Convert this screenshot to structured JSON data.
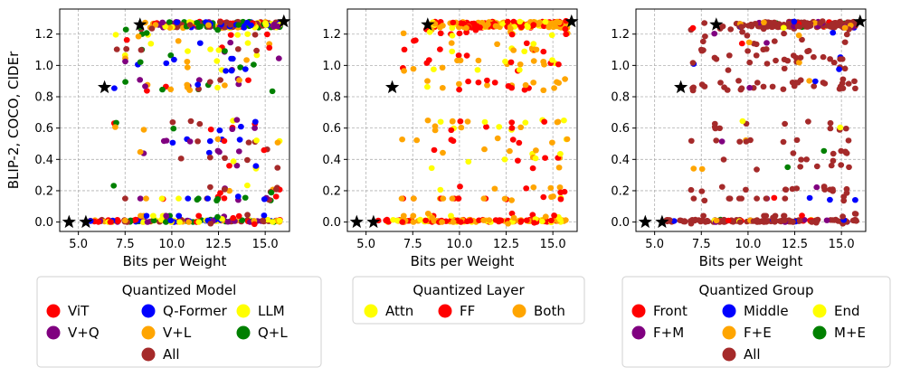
{
  "chart_data": [
    {
      "type": "scatter",
      "xlabel": "Bits per Weight",
      "ylabel": "BLIP-2, COCO, CIDEr",
      "xlim": [
        4.0,
        16.3
      ],
      "ylim": [
        -0.06,
        1.36
      ],
      "xticks": [
        "5.0",
        "7.5",
        "10.0",
        "12.5",
        "15.0"
      ],
      "yticks": [
        "0.0",
        "0.2",
        "0.4",
        "0.6",
        "0.8",
        "1.0",
        "1.2"
      ],
      "grid": true,
      "pareto_points": [
        [
          4.5,
          0.0
        ],
        [
          5.4,
          0.0
        ],
        [
          6.4,
          0.86
        ],
        [
          8.3,
          1.26
        ],
        [
          16.0,
          1.28
        ]
      ],
      "legend": {
        "title": "Quantized Model",
        "entries": [
          {
            "label": "ViT",
            "color": "#ff0000"
          },
          {
            "label": "Q-Former",
            "color": "#0000ff"
          },
          {
            "label": "LLM",
            "color": "#ffff00"
          },
          {
            "label": "V+Q",
            "color": "#800080"
          },
          {
            "label": "V+L",
            "color": "#ffa500"
          },
          {
            "label": "Q+L",
            "color": "#008000"
          },
          {
            "label": "All",
            "color": "#a52a2a"
          }
        ]
      }
    },
    {
      "type": "scatter",
      "xlabel": "Bits per Weight",
      "ylabel": "",
      "xlim": [
        4.0,
        16.3
      ],
      "ylim": [
        -0.06,
        1.36
      ],
      "xticks": [
        "5.0",
        "7.5",
        "10.0",
        "12.5",
        "15.0"
      ],
      "yticks": [
        "0.0",
        "0.2",
        "0.4",
        "0.6",
        "0.8",
        "1.0",
        "1.2"
      ],
      "grid": true,
      "pareto_points": [
        [
          4.5,
          0.0
        ],
        [
          5.4,
          0.0
        ],
        [
          6.4,
          0.86
        ],
        [
          8.3,
          1.26
        ],
        [
          16.0,
          1.28
        ]
      ],
      "legend": {
        "title": "Quantized Layer",
        "entries": [
          {
            "label": "Attn",
            "color": "#ffff00"
          },
          {
            "label": "FF",
            "color": "#ff0000"
          },
          {
            "label": "Both",
            "color": "#ffa500"
          }
        ]
      }
    },
    {
      "type": "scatter",
      "xlabel": "Bits per Weight",
      "ylabel": "",
      "xlim": [
        4.0,
        16.3
      ],
      "ylim": [
        -0.06,
        1.36
      ],
      "xticks": [
        "5.0",
        "7.5",
        "10.0",
        "12.5",
        "15.0"
      ],
      "yticks": [
        "0.0",
        "0.2",
        "0.4",
        "0.6",
        "0.8",
        "1.0",
        "1.2"
      ],
      "grid": true,
      "pareto_points": [
        [
          4.5,
          0.0
        ],
        [
          5.4,
          0.0
        ],
        [
          6.4,
          0.86
        ],
        [
          8.3,
          1.26
        ],
        [
          16.0,
          1.28
        ]
      ],
      "legend": {
        "title": "Quantized Group",
        "entries": [
          {
            "label": "Front",
            "color": "#ff0000"
          },
          {
            "label": "Middle",
            "color": "#0000ff"
          },
          {
            "label": "End",
            "color": "#ffff00"
          },
          {
            "label": "F+M",
            "color": "#800080"
          },
          {
            "label": "F+E",
            "color": "#ffa500"
          },
          {
            "label": "M+E",
            "color": "#008000"
          },
          {
            "label": "All",
            "color": "#a52a2a"
          }
        ]
      }
    }
  ],
  "clusters": {
    "x_values": [
      4.5,
      5.4,
      6.4,
      7.0,
      7.6,
      8.3,
      8.6,
      9.0,
      9.6,
      10.0,
      10.4,
      10.9,
      11.4,
      12.0,
      12.5,
      12.8,
      13.2,
      13.6,
      14.0,
      14.5,
      15.0,
      15.3,
      15.7
    ],
    "y_levels": [
      0.0,
      0.01,
      0.04,
      0.15,
      0.2,
      0.22,
      0.35,
      0.4,
      0.45,
      0.52,
      0.6,
      0.64,
      0.85,
      0.88,
      0.9,
      0.98,
      1.02,
      1.05,
      1.1,
      1.15,
      1.2,
      1.24,
      1.27
    ]
  }
}
